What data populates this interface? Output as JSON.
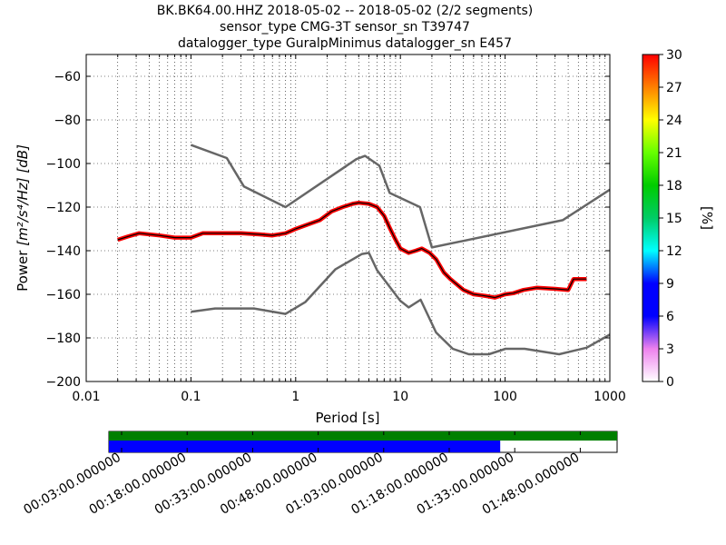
{
  "header": {
    "title_lines": [
      "BK.BK64.00.HHZ   2018-05-02 -- 2018-05-02  (2/2 segments)",
      "sensor_type CMG-3T sensor_sn T39747",
      "datalogger_type GuralpMinimus datalogger_sn E457"
    ]
  },
  "chart_data": {
    "type": "line",
    "xlabel": "Period [s]",
    "ylabel_prefix": "Power ",
    "ylabel_units": "[m²/s⁴/Hz] [dB]",
    "xscale": "log",
    "xlim": [
      0.01,
      1000
    ],
    "ylim": [
      -200,
      -50
    ],
    "x_ticks": [
      {
        "value": 0.01,
        "label": "0.01"
      },
      {
        "value": 0.1,
        "label": "0.1"
      },
      {
        "value": 1,
        "label": "1"
      },
      {
        "value": 10,
        "label": "10"
      },
      {
        "value": 100,
        "label": "100"
      },
      {
        "value": 1000,
        "label": "1000"
      }
    ],
    "y_ticks": [
      {
        "value": -60,
        "label": "−60"
      },
      {
        "value": -80,
        "label": "−80"
      },
      {
        "value": -100,
        "label": "−100"
      },
      {
        "value": -120,
        "label": "−120"
      },
      {
        "value": -140,
        "label": "−140"
      },
      {
        "value": -160,
        "label": "−160"
      },
      {
        "value": -180,
        "label": "−180"
      },
      {
        "value": -200,
        "label": "−200"
      }
    ],
    "grid": true,
    "series": [
      {
        "kind": "model",
        "color": "#666666",
        "points": [
          [
            0.1,
            -91.5
          ],
          [
            0.22,
            -97.5
          ],
          [
            0.32,
            -110.5
          ],
          [
            0.8,
            -120
          ],
          [
            3.8,
            -98
          ],
          [
            4.6,
            -96.5
          ],
          [
            6.3,
            -101
          ],
          [
            7.9,
            -113.5
          ],
          [
            15.4,
            -120
          ],
          [
            20,
            -138.5
          ],
          [
            354,
            -126
          ],
          [
            1000,
            -112
          ]
        ]
      },
      {
        "kind": "model",
        "color": "#666666",
        "points": [
          [
            0.1,
            -168
          ],
          [
            0.17,
            -166.5
          ],
          [
            0.4,
            -166.5
          ],
          [
            0.8,
            -169
          ],
          [
            1.24,
            -163.5
          ],
          [
            2.4,
            -148.5
          ],
          [
            4.3,
            -141.5
          ],
          [
            5,
            -141
          ],
          [
            6,
            -149
          ],
          [
            10,
            -163
          ],
          [
            12,
            -166
          ],
          [
            15.6,
            -162.5
          ],
          [
            21.9,
            -177.5
          ],
          [
            31.6,
            -185
          ],
          [
            45,
            -187.5
          ],
          [
            70,
            -187.5
          ],
          [
            101,
            -185
          ],
          [
            154,
            -185
          ],
          [
            328,
            -187.5
          ],
          [
            600,
            -184.5
          ],
          [
            1000,
            -178.5
          ]
        ]
      },
      {
        "kind": "mode",
        "color": "#000000",
        "points": [
          [
            0.02,
            -135
          ],
          [
            0.025,
            -133.5
          ],
          [
            0.032,
            -132
          ],
          [
            0.05,
            -133
          ],
          [
            0.07,
            -134
          ],
          [
            0.1,
            -134
          ],
          [
            0.13,
            -132
          ],
          [
            0.2,
            -132
          ],
          [
            0.3,
            -132
          ],
          [
            0.45,
            -132.5
          ],
          [
            0.6,
            -133
          ],
          [
            0.8,
            -132
          ],
          [
            1,
            -130
          ],
          [
            1.3,
            -128
          ],
          [
            1.7,
            -126
          ],
          [
            2.2,
            -122
          ],
          [
            2.8,
            -120
          ],
          [
            3.5,
            -118.5
          ],
          [
            4,
            -118
          ],
          [
            5,
            -118.5
          ],
          [
            6,
            -120
          ],
          [
            7,
            -124
          ],
          [
            8,
            -130
          ],
          [
            9,
            -135
          ],
          [
            10,
            -139
          ],
          [
            12,
            -141
          ],
          [
            14,
            -140
          ],
          [
            16,
            -139
          ],
          [
            19,
            -141
          ],
          [
            22,
            -144
          ],
          [
            26,
            -150
          ],
          [
            30,
            -153
          ],
          [
            40,
            -158
          ],
          [
            50,
            -160
          ],
          [
            60,
            -160.5
          ],
          [
            70,
            -161
          ],
          [
            80,
            -161.5
          ],
          [
            100,
            -160
          ],
          [
            120,
            -159.5
          ],
          [
            150,
            -158
          ],
          [
            200,
            -157
          ],
          [
            300,
            -157.5
          ],
          [
            400,
            -158
          ],
          [
            450,
            -153
          ],
          [
            600,
            -153
          ]
        ]
      }
    ],
    "colorbar": {
      "label": "[%]",
      "min": 0,
      "max": 30,
      "ticks": [
        {
          "value": 0,
          "label": "0"
        },
        {
          "value": 3,
          "label": "3"
        },
        {
          "value": 6,
          "label": "6"
        },
        {
          "value": 9,
          "label": "9"
        },
        {
          "value": 12,
          "label": "12"
        },
        {
          "value": 15,
          "label": "15"
        },
        {
          "value": 18,
          "label": "18"
        },
        {
          "value": 21,
          "label": "21"
        },
        {
          "value": 24,
          "label": "24"
        },
        {
          "value": 27,
          "label": "27"
        },
        {
          "value": 30,
          "label": "30"
        }
      ],
      "stops": [
        {
          "value": 0,
          "color": "#ffffff"
        },
        {
          "value": 3,
          "color": "#ee82ee"
        },
        {
          "value": 6,
          "color": "#0000ff"
        },
        {
          "value": 9,
          "color": "#0000ff"
        },
        {
          "value": 12,
          "color": "#00ffff"
        },
        {
          "value": 15,
          "color": "#00cc66"
        },
        {
          "value": 18,
          "color": "#00cc00"
        },
        {
          "value": 21,
          "color": "#66ff00"
        },
        {
          "value": 24,
          "color": "#ffff00"
        },
        {
          "value": 27,
          "color": "#ff8000"
        },
        {
          "value": 30,
          "color": "#ff0000"
        }
      ]
    },
    "coverage": {
      "bar_colors": {
        "data": "#007f00",
        "psd": "#0000ff"
      },
      "data_extent_fraction": 1.0,
      "psd_extent_fraction": 0.77,
      "time_ticks": [
        "00:03:00.000000",
        "00:18:00.000000",
        "00:33:00.000000",
        "00:48:00.000000",
        "01:03:00.000000",
        "01:18:00.000000",
        "01:33:00.000000",
        "01:48:00.000000"
      ]
    }
  }
}
